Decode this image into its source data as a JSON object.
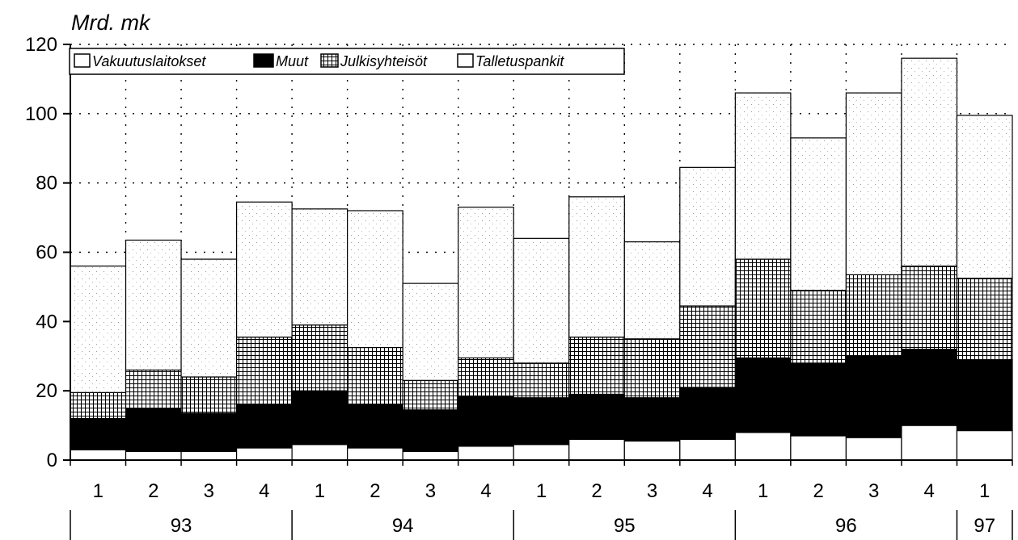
{
  "chart_data": {
    "type": "bar",
    "stacked": true,
    "unit_label": "Mrd. mk",
    "ylim": [
      0,
      120
    ],
    "yticks": [
      0,
      20,
      40,
      60,
      80,
      100,
      120
    ],
    "grid": "dotted",
    "legend": "top-left",
    "categories": [
      "1",
      "2",
      "3",
      "4",
      "1",
      "2",
      "3",
      "4",
      "1",
      "2",
      "3",
      "4",
      "1",
      "2",
      "3",
      "4",
      "1"
    ],
    "year_groups": [
      {
        "label": "93",
        "count": 4
      },
      {
        "label": "94",
        "count": 4
      },
      {
        "label": "95",
        "count": 4
      },
      {
        "label": "96",
        "count": 4
      },
      {
        "label": "97",
        "count": 1
      }
    ],
    "series": [
      {
        "name": "Vakuutuslaitokset",
        "pattern": "white",
        "values": [
          3,
          2.5,
          2.5,
          3.5,
          4.5,
          3.5,
          2.5,
          4,
          4.5,
          6,
          5.5,
          6,
          8,
          7,
          6.5,
          10,
          8.5
        ]
      },
      {
        "name": "Muut",
        "pattern": "solid",
        "values": [
          9,
          12.5,
          11,
          12.5,
          15.5,
          12.5,
          12,
          14.5,
          13.5,
          13,
          12.5,
          15,
          21.5,
          21,
          23.5,
          22,
          20.5
        ]
      },
      {
        "name": "Julkisyhteisöt",
        "pattern": "grid",
        "values": [
          7.5,
          11,
          10.5,
          19.5,
          19,
          16.5,
          8.5,
          11,
          10,
          16.5,
          17,
          23.5,
          28.5,
          21,
          23.5,
          24,
          23.5
        ]
      },
      {
        "name": "Talletuspankit",
        "pattern": "dotted",
        "values": [
          36.5,
          37.5,
          34,
          39,
          33.5,
          39.5,
          28,
          43.5,
          36,
          40.5,
          28,
          40,
          48,
          44,
          52.5,
          60,
          47
        ]
      }
    ]
  }
}
